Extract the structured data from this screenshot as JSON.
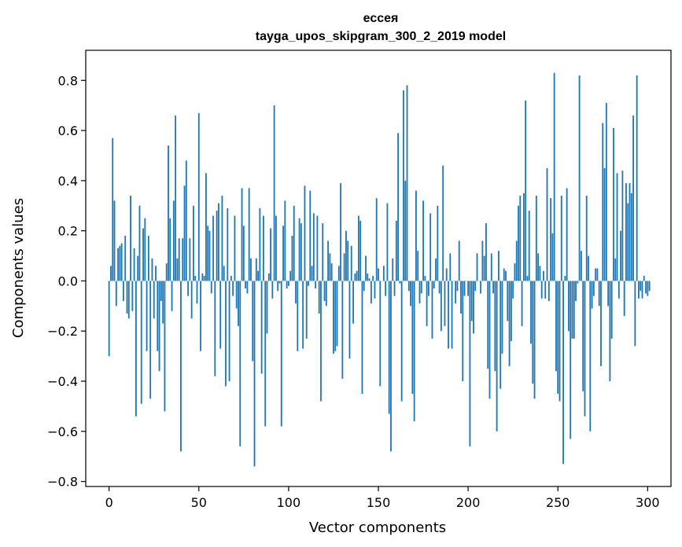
{
  "chart_data": {
    "type": "bar",
    "title": "ессея",
    "subtitle": "tayga_upos_skipgram_300_2_2019 model",
    "xlabel": "Vector components",
    "ylabel": "Components values",
    "xlim": [
      -13,
      313
    ],
    "ylim": [
      -0.82,
      0.92
    ],
    "xticks": [
      0,
      50,
      100,
      150,
      200,
      250,
      300
    ],
    "xtick_labels": [
      "0",
      "50",
      "100",
      "150",
      "200",
      "250",
      "300"
    ],
    "yticks": [
      -0.8,
      -0.6,
      -0.4,
      -0.2,
      0.0,
      0.2,
      0.4,
      0.6,
      0.8
    ],
    "ytick_labels": [
      "−0.8",
      "−0.6",
      "−0.4",
      "−0.2",
      "0.0",
      "0.2",
      "0.4",
      "0.6",
      "0.8"
    ],
    "grid": false,
    "color": "#1f77b4",
    "values": [
      -0.3,
      0.06,
      0.57,
      0.32,
      -0.1,
      0.13,
      0.14,
      0.15,
      -0.08,
      0.18,
      -0.13,
      -0.15,
      0.34,
      -0.12,
      0.13,
      -0.54,
      0.1,
      0.3,
      -0.49,
      0.21,
      0.25,
      -0.28,
      0.18,
      -0.47,
      0.09,
      -0.15,
      0.06,
      -0.28,
      -0.36,
      -0.08,
      -0.17,
      -0.52,
      0.07,
      0.54,
      0.25,
      -0.12,
      0.32,
      0.66,
      0.09,
      0.17,
      -0.68,
      0.17,
      0.38,
      0.48,
      -0.06,
      0.17,
      -0.15,
      0.3,
      0.02,
      -0.09,
      0.67,
      -0.28,
      0.03,
      0.02,
      0.43,
      0.22,
      0.2,
      -0.05,
      0.26,
      -0.38,
      0.28,
      0.31,
      -0.27,
      0.34,
      0.06,
      -0.42,
      0.29,
      -0.4,
      0.02,
      -0.06,
      0.26,
      -0.11,
      -0.18,
      -0.66,
      0.37,
      0.22,
      -0.03,
      -0.05,
      0.37,
      0.09,
      -0.32,
      -0.74,
      0.09,
      0.04,
      0.29,
      -0.37,
      0.26,
      -0.58,
      -0.21,
      0.03,
      0.21,
      -0.07,
      0.7,
      0.26,
      -0.04,
      -0.01,
      -0.58,
      0.22,
      0.32,
      -0.03,
      -0.02,
      0.04,
      0.18,
      0.3,
      -0.09,
      -0.28,
      0.25,
      0.23,
      -0.27,
      0.38,
      -0.23,
      -0.02,
      0.36,
      0.06,
      0.27,
      -0.03,
      0.26,
      -0.13,
      -0.48,
      0.23,
      -0.08,
      -0.1,
      0.16,
      0.11,
      0.07,
      -0.29,
      -0.28,
      -0.26,
      0.06,
      0.39,
      -0.39,
      0.11,
      0.2,
      0.16,
      -0.31,
      0.14,
      -0.17,
      0.03,
      0.04,
      0.26,
      0.24,
      -0.45,
      -0.04,
      0.1,
      0.03,
      0.01,
      -0.09,
      0.02,
      -0.07,
      0.33,
      0.05,
      -0.42,
      0.0,
      0.06,
      -0.06,
      0.31,
      -0.53,
      -0.68,
      0.09,
      -0.06,
      0.24,
      0.59,
      -0.01,
      -0.48,
      0.76,
      0.4,
      0.78,
      -0.04,
      -0.1,
      -0.45,
      -0.56,
      0.36,
      0.12,
      -0.09,
      -0.05,
      0.32,
      0.02,
      -0.18,
      -0.06,
      0.27,
      -0.23,
      -0.03,
      0.09,
      0.3,
      -0.05,
      -0.2,
      0.46,
      -0.18,
      0.05,
      -0.27,
      0.11,
      -0.27,
      0.0,
      -0.09,
      -0.04,
      0.16,
      -0.13,
      -0.4,
      -0.06,
      0.0,
      -0.06,
      -0.66,
      -0.16,
      -0.21,
      -0.04,
      0.11,
      0.0,
      -0.05,
      0.16,
      0.1,
      0.23,
      -0.35,
      -0.47,
      0.11,
      -0.05,
      -0.36,
      -0.6,
      0.12,
      -0.43,
      -0.29,
      0.05,
      0.04,
      -0.16,
      -0.34,
      -0.24,
      -0.07,
      0.07,
      0.16,
      0.3,
      0.34,
      -0.18,
      0.35,
      0.72,
      0.02,
      0.28,
      -0.25,
      -0.41,
      -0.47,
      0.34,
      0.11,
      0.06,
      -0.07,
      0.04,
      -0.07,
      0.45,
      -0.08,
      0.33,
      0.19,
      0.83,
      -0.36,
      -0.45,
      -0.48,
      0.34,
      -0.73,
      0.02,
      0.37,
      -0.2,
      -0.63,
      -0.23,
      -0.23,
      -0.08,
      -0.01,
      0.82,
      0.12,
      -0.44,
      -0.54,
      0.34,
      0.1,
      -0.6,
      -0.11,
      -0.06,
      0.05,
      0.05,
      -0.1,
      -0.34,
      0.63,
      0.45,
      0.71,
      -0.1,
      -0.4,
      -0.23,
      0.61,
      0.09,
      0.43,
      -0.07,
      0.2,
      0.44,
      -0.14,
      0.39,
      0.31,
      0.39,
      0.35,
      0.66,
      -0.26,
      0.82,
      -0.07,
      -0.04,
      -0.07,
      0.02,
      -0.05,
      -0.06,
      -0.04
    ]
  }
}
